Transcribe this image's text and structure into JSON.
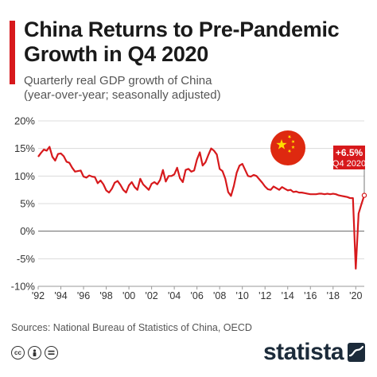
{
  "header": {
    "title_line1": "China Returns to Pre-Pandemic",
    "title_line2": "Growth in Q4 2020",
    "subtitle_line1": "Quarterly real GDP growth of China",
    "subtitle_line2": "(year-over-year; seasonally adjusted)"
  },
  "footer": {
    "sources": "Sources: National Bureau of Statistics of China, OECD",
    "brand": "statista",
    "license_icons": [
      "cc-icon",
      "by-icon",
      "nd-icon"
    ]
  },
  "colors": {
    "accent": "#d7191c",
    "line": "#d7191c",
    "flag_red": "#de2910",
    "flag_star": "#ffde00",
    "brand": "#1c2b3a"
  },
  "chart_data": {
    "type": "line",
    "title": "China Returns to Pre-Pandemic Growth in Q4 2020",
    "subtitle": "Quarterly real GDP growth of China (year-over-year; seasonally adjusted)",
    "xlabel": "",
    "ylabel": "",
    "xlim": [
      1992,
      2020.75
    ],
    "ylim": [
      -10,
      20
    ],
    "yticks": [
      -10,
      -5,
      0,
      5,
      10,
      15,
      20
    ],
    "ytick_labels": [
      "-10%",
      "-5%",
      "0%",
      "5%",
      "10%",
      "15%",
      "20%"
    ],
    "xticks": [
      1992,
      1994,
      1996,
      1998,
      2000,
      2002,
      2004,
      2006,
      2008,
      2010,
      2012,
      2014,
      2016,
      2018,
      2020
    ],
    "xtick_labels": [
      "'92",
      "'94",
      "'96",
      "'98",
      "'00",
      "'02",
      "'04",
      "'06",
      "'08",
      "'10",
      "'12",
      "'14",
      "'16",
      "'18",
      "'20"
    ],
    "grid": "horizontal",
    "annotation": {
      "value_label": "+6.5%",
      "period_label": "Q4 2020",
      "x": 2020.75,
      "y": 6.5
    },
    "series": [
      {
        "values": [
          [
            1992.0,
            13.5
          ],
          [
            1992.25,
            14.2
          ],
          [
            1992.5,
            14.8
          ],
          [
            1992.75,
            14.6
          ],
          [
            1993.0,
            15.3
          ],
          [
            1993.25,
            13.5
          ],
          [
            1993.5,
            12.8
          ],
          [
            1993.75,
            14.0
          ],
          [
            1994.0,
            14.1
          ],
          [
            1994.25,
            13.6
          ],
          [
            1994.5,
            12.6
          ],
          [
            1994.75,
            12.4
          ],
          [
            1995.0,
            11.5
          ],
          [
            1995.25,
            10.8
          ],
          [
            1995.5,
            10.9
          ],
          [
            1995.75,
            11.0
          ],
          [
            1996.0,
            9.9
          ],
          [
            1996.25,
            9.7
          ],
          [
            1996.5,
            10.1
          ],
          [
            1996.75,
            9.9
          ],
          [
            1997.0,
            9.8
          ],
          [
            1997.25,
            8.7
          ],
          [
            1997.5,
            9.2
          ],
          [
            1997.75,
            8.5
          ],
          [
            1998.0,
            7.4
          ],
          [
            1998.25,
            7.0
          ],
          [
            1998.5,
            7.7
          ],
          [
            1998.75,
            8.8
          ],
          [
            1999.0,
            9.1
          ],
          [
            1999.25,
            8.4
          ],
          [
            1999.5,
            7.5
          ],
          [
            1999.75,
            7.0
          ],
          [
            2000.0,
            8.3
          ],
          [
            2000.25,
            8.9
          ],
          [
            2000.5,
            8.0
          ],
          [
            2000.75,
            7.5
          ],
          [
            2001.0,
            9.5
          ],
          [
            2001.25,
            8.5
          ],
          [
            2001.5,
            8.0
          ],
          [
            2001.75,
            7.5
          ],
          [
            2002.0,
            8.6
          ],
          [
            2002.25,
            8.9
          ],
          [
            2002.5,
            8.5
          ],
          [
            2002.75,
            9.3
          ],
          [
            2003.0,
            11.1
          ],
          [
            2003.25,
            9.0
          ],
          [
            2003.5,
            10.0
          ],
          [
            2003.75,
            10.0
          ],
          [
            2004.0,
            10.3
          ],
          [
            2004.25,
            11.5
          ],
          [
            2004.5,
            9.6
          ],
          [
            2004.75,
            8.9
          ],
          [
            2005.0,
            11.1
          ],
          [
            2005.25,
            11.3
          ],
          [
            2005.5,
            10.8
          ],
          [
            2005.75,
            11.0
          ],
          [
            2006.0,
            13.0
          ],
          [
            2006.25,
            14.3
          ],
          [
            2006.5,
            11.9
          ],
          [
            2006.75,
            12.5
          ],
          [
            2007.0,
            13.8
          ],
          [
            2007.25,
            15.0
          ],
          [
            2007.5,
            14.6
          ],
          [
            2007.75,
            13.9
          ],
          [
            2008.0,
            11.3
          ],
          [
            2008.25,
            10.9
          ],
          [
            2008.5,
            9.5
          ],
          [
            2008.75,
            7.1
          ],
          [
            2009.0,
            6.4
          ],
          [
            2009.25,
            8.2
          ],
          [
            2009.5,
            10.6
          ],
          [
            2009.75,
            11.9
          ],
          [
            2010.0,
            12.2
          ],
          [
            2010.25,
            11.1
          ],
          [
            2010.5,
            10.0
          ],
          [
            2010.75,
            9.9
          ],
          [
            2011.0,
            10.2
          ],
          [
            2011.25,
            10.0
          ],
          [
            2011.5,
            9.4
          ],
          [
            2011.75,
            8.8
          ],
          [
            2012.0,
            8.1
          ],
          [
            2012.25,
            7.6
          ],
          [
            2012.5,
            7.5
          ],
          [
            2012.75,
            8.1
          ],
          [
            2013.0,
            7.8
          ],
          [
            2013.25,
            7.5
          ],
          [
            2013.5,
            8.0
          ],
          [
            2013.75,
            7.7
          ],
          [
            2014.0,
            7.4
          ],
          [
            2014.25,
            7.5
          ],
          [
            2014.5,
            7.1
          ],
          [
            2014.75,
            7.2
          ],
          [
            2015.0,
            7.0
          ],
          [
            2015.25,
            7.0
          ],
          [
            2015.5,
            6.9
          ],
          [
            2015.75,
            6.8
          ],
          [
            2016.0,
            6.7
          ],
          [
            2016.25,
            6.7
          ],
          [
            2016.5,
            6.7
          ],
          [
            2016.75,
            6.8
          ],
          [
            2017.0,
            6.8
          ],
          [
            2017.25,
            6.7
          ],
          [
            2017.5,
            6.8
          ],
          [
            2017.75,
            6.7
          ],
          [
            2018.0,
            6.8
          ],
          [
            2018.25,
            6.7
          ],
          [
            2018.5,
            6.5
          ],
          [
            2018.75,
            6.4
          ],
          [
            2019.0,
            6.3
          ],
          [
            2019.25,
            6.2
          ],
          [
            2019.5,
            6.0
          ],
          [
            2019.75,
            6.0
          ],
          [
            2020.0,
            -6.8
          ],
          [
            2020.25,
            3.2
          ],
          [
            2020.5,
            4.9
          ],
          [
            2020.75,
            6.5
          ]
        ]
      }
    ]
  }
}
